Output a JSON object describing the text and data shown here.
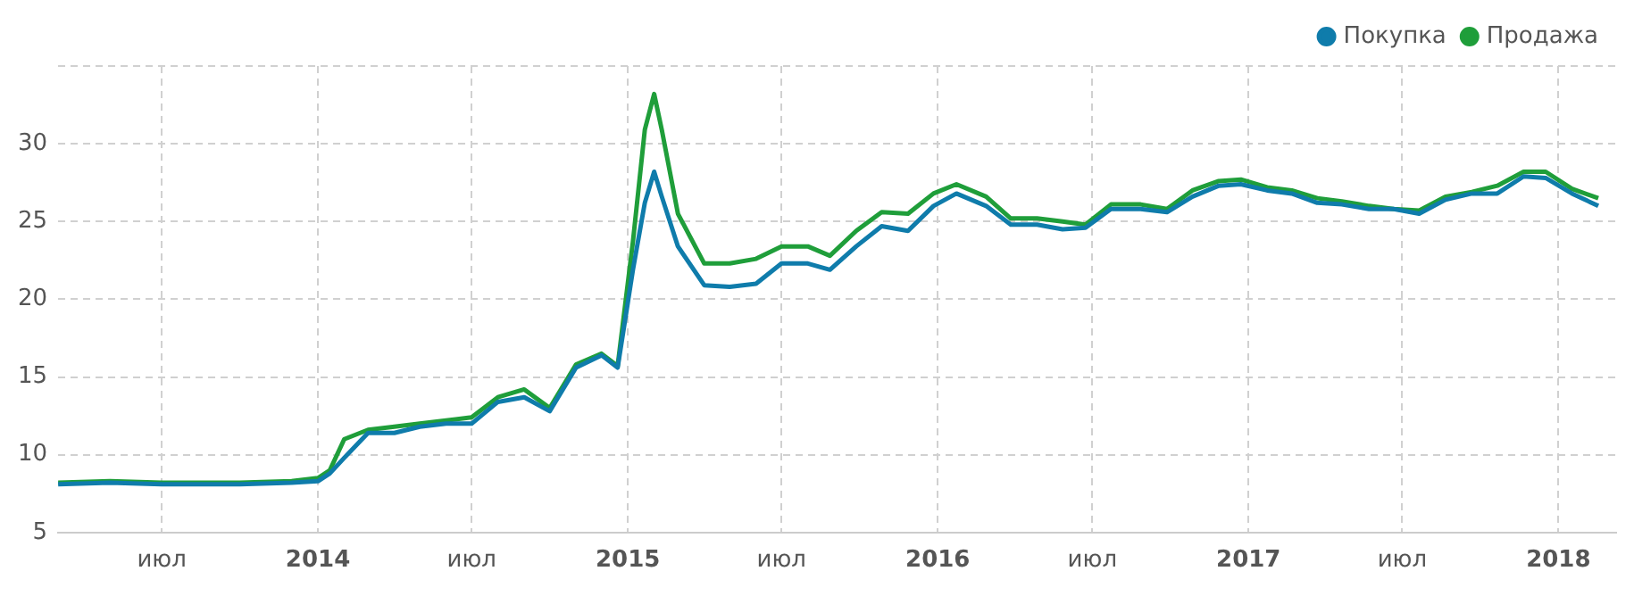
{
  "chart_data": {
    "type": "line",
    "xlim": [
      "2013-03-01",
      "2018-03-10"
    ],
    "xticks": [
      {
        "value": "2013-07",
        "label": "июл"
      },
      {
        "value": "2014-01",
        "label": "2014"
      },
      {
        "value": "2014-07",
        "label": "июл"
      },
      {
        "value": "2015-01",
        "label": "2015"
      },
      {
        "value": "2015-07",
        "label": "июл"
      },
      {
        "value": "2016-01",
        "label": "2016"
      },
      {
        "value": "2016-07",
        "label": "июл"
      },
      {
        "value": "2017-01",
        "label": "2017"
      },
      {
        "value": "2017-07",
        "label": "июл"
      },
      {
        "value": "2018-01",
        "label": "2018"
      }
    ],
    "ylim": [
      5,
      35
    ],
    "yticks": [
      5,
      10,
      15,
      20,
      25,
      30,
      {
        "value": 35,
        "label": null
      }
    ],
    "grid": true,
    "legend": "top right",
    "marker": "none",
    "x": [
      "2013-03-01",
      "2013-05-01",
      "2013-07-01",
      "2013-09-01",
      "2013-10-01",
      "2013-12-01",
      "2014-01-01",
      "2014-01-15",
      "2014-02-01",
      "2014-03-01",
      "2014-04-01",
      "2014-05-01",
      "2014-06-01",
      "2014-07-01",
      "2014-08-01",
      "2014-09-01",
      "2014-10-01",
      "2014-11-01",
      "2014-12-01",
      "2014-12-20",
      "2015-01-07",
      "2015-01-21",
      "2015-02-01",
      "2015-02-10",
      "2015-03-01",
      "2015-04-01",
      "2015-05-01",
      "2015-06-01",
      "2015-07-01",
      "2015-08-01",
      "2015-08-27",
      "2015-09-27",
      "2015-10-27",
      "2015-11-27",
      "2015-12-27",
      "2016-01-23",
      "2016-02-27",
      "2016-03-27",
      "2016-04-27",
      "2016-05-27",
      "2016-06-23",
      "2016-07-23",
      "2016-08-27",
      "2016-09-27",
      "2016-10-27",
      "2016-11-27",
      "2016-12-23",
      "2017-01-23",
      "2017-02-21",
      "2017-03-23",
      "2017-04-21",
      "2017-05-23",
      "2017-06-21",
      "2017-07-21",
      "2017-08-21",
      "2017-09-21",
      "2017-10-21",
      "2017-11-21",
      "2017-12-17",
      "2018-01-17",
      "2018-02-17"
    ],
    "series": [
      {
        "name": "Покупка",
        "color": "#0f7cab",
        "values": [
          8.1,
          8.2,
          8.1,
          8.1,
          8.1,
          8.2,
          8.3,
          8.8,
          9.8,
          11.4,
          11.4,
          11.8,
          12.0,
          12.0,
          13.4,
          13.7,
          12.8,
          15.6,
          16.4,
          15.6,
          21.9,
          26.2,
          28.2,
          26.6,
          23.4,
          20.9,
          20.8,
          21.0,
          22.3,
          22.3,
          21.9,
          23.4,
          24.7,
          24.4,
          26.0,
          26.8,
          26.0,
          24.8,
          24.8,
          24.5,
          24.6,
          25.8,
          25.8,
          25.6,
          26.6,
          27.3,
          27.4,
          27.0,
          26.8,
          26.2,
          26.1,
          25.8,
          25.8,
          25.5,
          26.4,
          26.8,
          26.8,
          27.9,
          27.8,
          26.8,
          26.0
        ]
      },
      {
        "name": "Продажа",
        "color": "#1f9e3a",
        "values": [
          8.2,
          8.3,
          8.2,
          8.2,
          8.2,
          8.3,
          8.5,
          9.0,
          11.0,
          11.6,
          11.8,
          12.0,
          12.2,
          12.4,
          13.7,
          14.2,
          13.0,
          15.8,
          16.5,
          15.7,
          23.7,
          30.9,
          33.2,
          30.9,
          25.5,
          22.3,
          22.3,
          22.6,
          23.4,
          23.4,
          22.8,
          24.4,
          25.6,
          25.5,
          26.8,
          27.4,
          26.6,
          25.2,
          25.2,
          25.0,
          24.8,
          26.1,
          26.1,
          25.8,
          27.0,
          27.6,
          27.7,
          27.2,
          27.0,
          26.5,
          26.3,
          26.0,
          25.8,
          25.7,
          26.6,
          26.9,
          27.3,
          28.2,
          28.2,
          27.1,
          26.5
        ]
      }
    ]
  }
}
